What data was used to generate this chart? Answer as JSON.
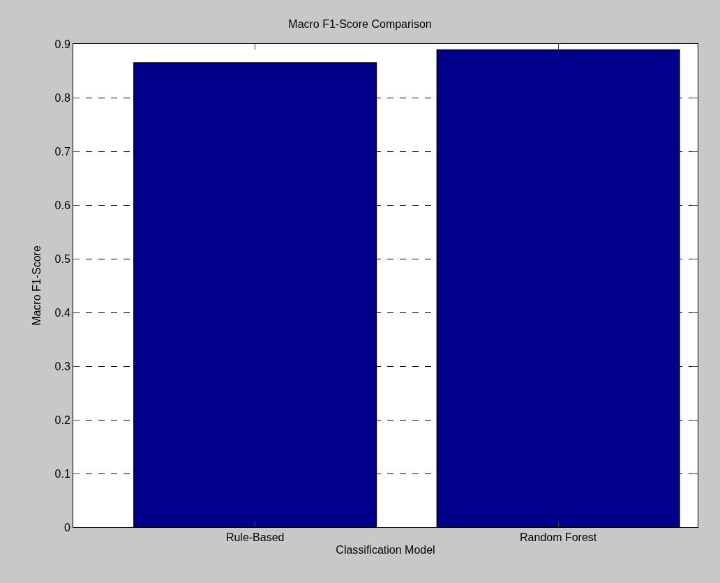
{
  "chart_data": {
    "type": "bar",
    "title": "Macro F1-Score Comparison",
    "xlabel": "Classification Model",
    "ylabel": "Macro F1-Score",
    "categories": [
      "Rule-Based",
      "Random Forest"
    ],
    "values": [
      0.865,
      0.889
    ],
    "color": "#00008b",
    "ylim": [
      0,
      0.9
    ],
    "yticks": [
      0,
      0.1,
      0.2,
      0.3,
      0.4,
      0.5,
      0.6,
      0.7,
      0.8,
      0.9
    ],
    "grid": "y",
    "legend": false
  }
}
